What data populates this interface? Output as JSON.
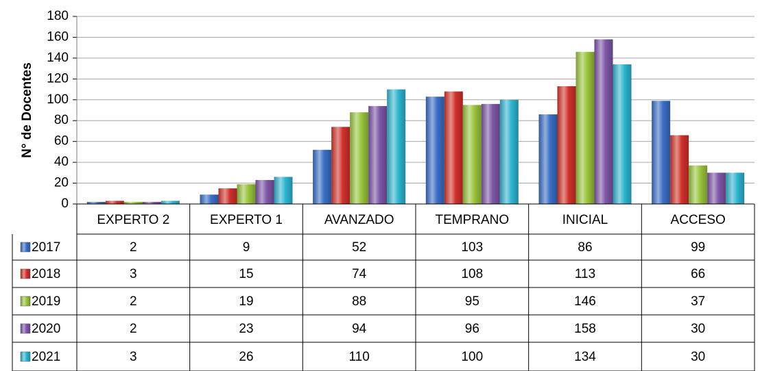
{
  "chart_data": {
    "type": "bar",
    "y_label": "N° de Docentes",
    "categories": [
      "EXPERTO 2",
      "EXPERTO 1",
      "AVANZADO",
      "TEMPRANO",
      "INICIAL",
      "ACCESO"
    ],
    "series": [
      {
        "name": "2017",
        "color": "#3b6fc6",
        "values": [
          2,
          9,
          52,
          103,
          86,
          99
        ]
      },
      {
        "name": "2018",
        "color": "#d2312c",
        "values": [
          3,
          15,
          74,
          108,
          113,
          66
        ]
      },
      {
        "name": "2019",
        "color": "#9cc63d",
        "values": [
          2,
          19,
          88,
          95,
          146,
          37
        ]
      },
      {
        "name": "2020",
        "color": "#7f57a8",
        "values": [
          2,
          23,
          94,
          96,
          158,
          30
        ]
      },
      {
        "name": "2021",
        "color": "#2fb6d2",
        "values": [
          3,
          26,
          110,
          100,
          134,
          30
        ]
      }
    ],
    "ylim": [
      0,
      180
    ],
    "yticks": [
      0,
      20,
      40,
      60,
      80,
      100,
      120,
      140,
      160,
      180
    ],
    "grid": true
  }
}
